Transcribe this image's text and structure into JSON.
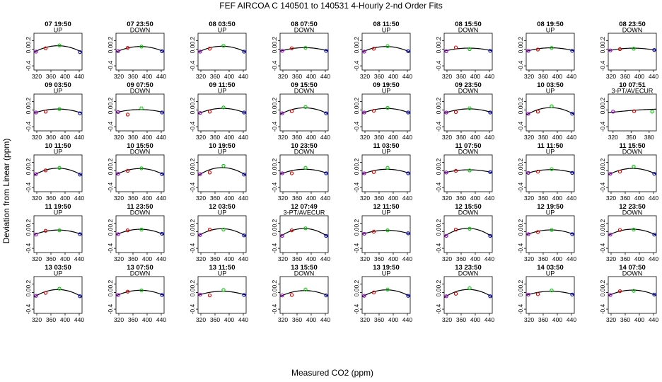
{
  "title": "FEF   AIRCOA C   140501 to 140531   4-Hourly 2-nd Order Fits",
  "xlabel": "Measured CO2 (ppm)",
  "ylabel": "Deviation from Linear (ppm)",
  "colors": {
    "point_red": "#e00000",
    "point_green": "#00cc00",
    "point_blue": "#0000cc",
    "point_purple": "#9900cc",
    "curve": "#000000"
  },
  "chart_data": {
    "type": "scatter",
    "layout_grid": "5 rows x 8 columns",
    "default_xlim": [
      312,
      448
    ],
    "default_xticks": [
      320,
      360,
      400,
      440
    ],
    "default_ylim": [
      -0.5,
      0.38
    ],
    "default_yticks": [
      -0.4,
      0.0,
      0.2
    ],
    "default_x": [
      318,
      345,
      384,
      442
    ],
    "panels": [
      {
        "title": "07 19:50",
        "sub": "UP",
        "y": [
          -0.06,
          0.02,
          0.09,
          -0.07
        ],
        "curve": [
          -0.05,
          0.04,
          0.08,
          -0.05
        ]
      },
      {
        "title": "07 23:50",
        "sub": "DOWN",
        "y": [
          -0.05,
          0.03,
          0.06,
          -0.05
        ],
        "curve": [
          -0.05,
          0.03,
          0.06,
          -0.04
        ]
      },
      {
        "title": "08 03:50",
        "sub": "UP",
        "y": [
          -0.06,
          0.01,
          0.08,
          -0.06
        ],
        "curve": [
          -0.05,
          0.03,
          0.07,
          -0.05
        ]
      },
      {
        "title": "08 07:50",
        "sub": "DOWN",
        "y": [
          -0.04,
          0.02,
          0.03,
          -0.04
        ],
        "curve": [
          -0.04,
          0.02,
          0.03,
          -0.03
        ]
      },
      {
        "title": "08 11:50",
        "sub": "UP",
        "y": [
          -0.06,
          0.01,
          0.07,
          -0.05
        ],
        "curve": [
          -0.05,
          0.03,
          0.06,
          -0.05
        ]
      },
      {
        "title": "08 15:50",
        "sub": "DOWN",
        "y": [
          -0.05,
          0.04,
          0.0,
          -0.04
        ],
        "curve": [
          -0.04,
          0.01,
          0.02,
          -0.03
        ]
      },
      {
        "title": "08 19:50",
        "sub": "UP",
        "y": [
          -0.04,
          -0.01,
          0.03,
          -0.04
        ],
        "curve": [
          -0.04,
          0.01,
          0.03,
          -0.03
        ]
      },
      {
        "title": "08 23:50",
        "sub": "DOWN",
        "y": [
          -0.03,
          0.0,
          0.01,
          -0.02
        ],
        "curve": [
          -0.03,
          0.01,
          0.02,
          -0.02
        ]
      },
      {
        "title": "09 03:50",
        "sub": "UP",
        "y": [
          -0.06,
          -0.04,
          0.02,
          -0.08
        ],
        "curve": [
          -0.06,
          0.0,
          0.02,
          -0.06
        ]
      },
      {
        "title": "09 07:50",
        "sub": "DOWN",
        "y": [
          -0.05,
          -0.11,
          0.04,
          -0.06
        ],
        "curve": [
          -0.05,
          -0.01,
          0.01,
          -0.05
        ]
      },
      {
        "title": "09 11:50",
        "sub": "UP",
        "y": [
          -0.07,
          -0.04,
          0.06,
          -0.06
        ],
        "curve": [
          -0.07,
          0.0,
          0.04,
          -0.06
        ]
      },
      {
        "title": "09 15:50",
        "sub": "DOWN",
        "y": [
          -0.08,
          -0.03,
          0.07,
          -0.08
        ],
        "curve": [
          -0.08,
          0.01,
          0.05,
          -0.07
        ]
      },
      {
        "title": "09 19:50",
        "sub": "UP",
        "y": [
          -0.06,
          -0.02,
          0.05,
          -0.06
        ],
        "curve": [
          -0.06,
          0.0,
          0.04,
          -0.06
        ]
      },
      {
        "title": "09 23:50",
        "sub": "DOWN",
        "y": [
          -0.06,
          -0.05,
          0.04,
          -0.06
        ],
        "curve": [
          -0.06,
          -0.01,
          0.03,
          -0.05
        ]
      },
      {
        "title": "10 03:50",
        "sub": "UP",
        "y": [
          -0.09,
          -0.04,
          0.09,
          -0.09
        ],
        "curve": [
          -0.09,
          0.0,
          0.06,
          -0.08
        ]
      },
      {
        "title": "10 07:51",
        "sub": "3-PT/AVECUR",
        "x": [
          320,
          355,
          385
        ],
        "xlim": [
          312,
          392
        ],
        "xticks": [
          320,
          350,
          380
        ],
        "y": [
          -0.04,
          -0.03,
          -0.04
        ],
        "curve": [
          -0.06,
          -0.01,
          0.01,
          0.02
        ]
      },
      {
        "title": "10 11:50",
        "sub": "UP",
        "y": [
          -0.08,
          0.01,
          0.07,
          -0.09
        ],
        "curve": [
          -0.08,
          0.02,
          0.06,
          -0.08
        ]
      },
      {
        "title": "10 15:50",
        "sub": "DOWN",
        "y": [
          -0.07,
          0.0,
          0.06,
          -0.08
        ],
        "curve": [
          -0.07,
          0.02,
          0.05,
          -0.07
        ]
      },
      {
        "title": "10 19:50",
        "sub": "UP",
        "y": [
          -0.08,
          -0.04,
          0.12,
          -0.09
        ],
        "curve": [
          -0.08,
          0.02,
          0.08,
          -0.08
        ]
      },
      {
        "title": "10 23:50",
        "sub": "DOWN",
        "y": [
          -0.06,
          -0.06,
          0.07,
          -0.06
        ],
        "curve": [
          -0.06,
          0.0,
          0.04,
          -0.05
        ]
      },
      {
        "title": "11 03:50",
        "sub": "UP",
        "y": [
          -0.06,
          -0.03,
          0.07,
          -0.06
        ],
        "curve": [
          -0.06,
          0.0,
          0.04,
          -0.05
        ]
      },
      {
        "title": "11 07:50",
        "sub": "DOWN",
        "y": [
          -0.04,
          0.0,
          0.01,
          -0.03
        ],
        "curve": [
          -0.04,
          0.01,
          0.02,
          -0.03
        ]
      },
      {
        "title": "11 11:50",
        "sub": "UP",
        "y": [
          -0.05,
          -0.02,
          0.04,
          -0.05
        ],
        "curve": [
          -0.05,
          0.0,
          0.03,
          -0.04
        ]
      },
      {
        "title": "11 15:50",
        "sub": "DOWN",
        "y": [
          -0.07,
          -0.02,
          0.1,
          -0.07
        ],
        "curve": [
          -0.07,
          0.01,
          0.06,
          -0.06
        ]
      },
      {
        "title": "11 19:50",
        "sub": "UP",
        "y": [
          -0.07,
          0.02,
          0.03,
          -0.06
        ],
        "curve": [
          -0.06,
          0.02,
          0.03,
          -0.05
        ]
      },
      {
        "title": "11 23:50",
        "sub": "DOWN",
        "y": [
          -0.06,
          0.03,
          0.05,
          -0.05
        ],
        "curve": [
          -0.06,
          0.03,
          0.05,
          -0.05
        ]
      },
      {
        "title": "12 03:50",
        "sub": "UP",
        "y": [
          -0.08,
          0.05,
          0.05,
          -0.09
        ],
        "curve": [
          -0.08,
          0.04,
          0.06,
          -0.08
        ]
      },
      {
        "title": "12 07:49",
        "sub": "3-PT/AVECUR",
        "y": [
          -0.1,
          0.03,
          0.08,
          -0.1
        ],
        "curve": [
          -0.09,
          0.03,
          0.07,
          -0.09
        ]
      },
      {
        "title": "12 11:50",
        "sub": "UP",
        "y": [
          -0.05,
          0.0,
          0.03,
          -0.04
        ],
        "curve": [
          -0.05,
          0.01,
          0.03,
          -0.04
        ]
      },
      {
        "title": "12 15:50",
        "sub": "DOWN",
        "y": [
          -0.1,
          0.05,
          0.07,
          -0.1
        ],
        "curve": [
          -0.09,
          0.04,
          0.07,
          -0.09
        ]
      },
      {
        "title": "12 19:50",
        "sub": "UP",
        "y": [
          -0.06,
          -0.01,
          0.04,
          -0.06
        ],
        "curve": [
          -0.06,
          0.01,
          0.04,
          -0.05
        ]
      },
      {
        "title": "12 23:50",
        "sub": "DOWN",
        "y": [
          -0.07,
          0.04,
          0.05,
          -0.07
        ],
        "curve": [
          -0.07,
          0.03,
          0.05,
          -0.06
        ]
      },
      {
        "title": "13 03:50",
        "sub": "UP",
        "y": [
          -0.08,
          -0.01,
          0.09,
          -0.09
        ],
        "curve": [
          -0.08,
          0.02,
          0.07,
          -0.08
        ]
      },
      {
        "title": "13 07:50",
        "sub": "DOWN",
        "y": [
          -0.06,
          0.02,
          0.05,
          -0.06
        ],
        "curve": [
          -0.06,
          0.02,
          0.05,
          -0.05
        ]
      },
      {
        "title": "13 11:50",
        "sub": "UP",
        "y": [
          -0.05,
          -0.07,
          0.06,
          -0.06
        ],
        "curve": [
          -0.05,
          0.0,
          0.03,
          -0.05
        ]
      },
      {
        "title": "13 15:50",
        "sub": "DOWN",
        "y": [
          -0.07,
          -0.06,
          0.07,
          -0.07
        ],
        "curve": [
          -0.07,
          0.0,
          0.05,
          -0.06
        ]
      },
      {
        "title": "13 19:50",
        "sub": "UP",
        "y": [
          -0.08,
          0.0,
          0.07,
          -0.08
        ],
        "curve": [
          -0.08,
          0.02,
          0.06,
          -0.07
        ]
      },
      {
        "title": "13 23:50",
        "sub": "DOWN",
        "y": [
          -0.09,
          -0.03,
          0.1,
          -0.09
        ],
        "curve": [
          -0.09,
          0.02,
          0.07,
          -0.08
        ]
      },
      {
        "title": "14 03:50",
        "sub": "UP",
        "y": [
          -0.05,
          -0.04,
          0.05,
          -0.05
        ],
        "curve": [
          -0.05,
          0.0,
          0.03,
          -0.04
        ]
      },
      {
        "title": "14 07:50",
        "sub": "DOWN",
        "y": [
          -0.06,
          0.03,
          0.04,
          -0.05
        ],
        "curve": [
          -0.06,
          0.03,
          0.05,
          -0.05
        ]
      }
    ]
  }
}
